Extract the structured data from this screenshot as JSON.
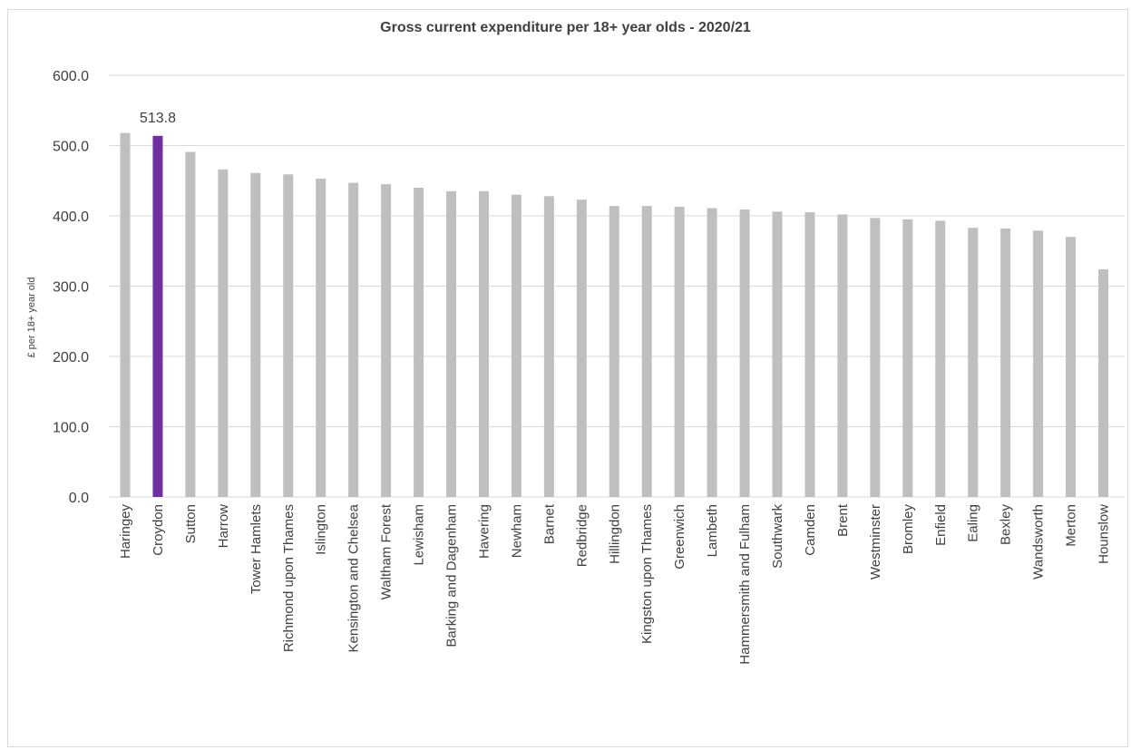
{
  "chart_data": {
    "type": "bar",
    "title": "Gross current expenditure per 18+ year olds - 2020/21",
    "xlabel": "",
    "ylabel": "£ per 18+ year old",
    "ylim": [
      0,
      600
    ],
    "yticks": [
      "0.0",
      "100.0",
      "200.0",
      "300.0",
      "400.0",
      "500.0",
      "600.0"
    ],
    "grid": true,
    "legend": "none",
    "colors": {
      "default": "#bfbfbf",
      "highlight": "#7030a0",
      "grid": "#d9d9d9",
      "text": "#404040"
    },
    "highlight_index": 1,
    "data_labels": [
      {
        "index": 1,
        "text": "513.8"
      }
    ],
    "categories": [
      "Haringey",
      "Croydon",
      "Sutton",
      "Harrow",
      "Tower Hamlets",
      "Richmond upon Thames",
      "Islington",
      "Kensington and Chelsea",
      "Waltham Forest",
      "Lewisham",
      "Barking and Dagenham",
      "Havering",
      "Newham",
      "Barnet",
      "Redbridge",
      "Hillingdon",
      "Kingston upon Thames",
      "Greenwich",
      "Lambeth",
      "Hammersmith and Fulham",
      "Southwark",
      "Camden",
      "Brent",
      "Westminster",
      "Bromley",
      "Enfield",
      "Ealing",
      "Bexley",
      "Wandsworth",
      "Merton",
      "Hounslow"
    ],
    "values": [
      518,
      513.8,
      491,
      466,
      461,
      459,
      453,
      447,
      445,
      440,
      435,
      435,
      430,
      428,
      423,
      414,
      414,
      413,
      411,
      409,
      406,
      405,
      402,
      397,
      395,
      393,
      383,
      382,
      379,
      370,
      324
    ]
  }
}
